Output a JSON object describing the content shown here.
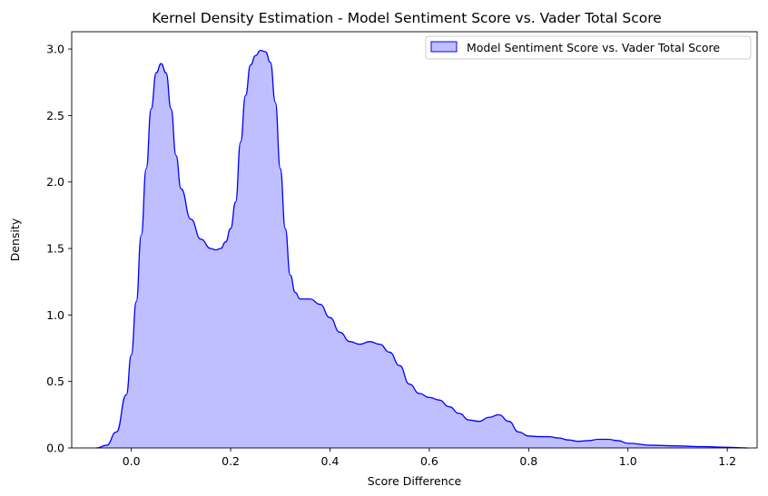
{
  "chart_data": {
    "type": "area",
    "title": "Kernel Density Estimation - Model Sentiment Score vs. Vader Total Score",
    "xlabel": "Score Difference",
    "ylabel": "Density",
    "xlim": [
      -0.12,
      1.26
    ],
    "ylim": [
      0,
      3.13
    ],
    "xticks": [
      0.0,
      0.2,
      0.4,
      0.6,
      0.8,
      1.0,
      1.2
    ],
    "xtick_labels": [
      "0.0",
      "0.2",
      "0.4",
      "0.6",
      "0.8",
      "1.0",
      "1.2"
    ],
    "yticks": [
      0.0,
      0.5,
      1.0,
      1.5,
      2.0,
      2.5,
      3.0
    ],
    "ytick_labels": [
      "0.0",
      "0.5",
      "1.0",
      "1.5",
      "2.0",
      "2.5",
      "3.0"
    ],
    "grid": false,
    "legend_position": "top-right",
    "series": [
      {
        "name": "Model Sentiment Score vs. Vader Total Score",
        "color": "#0000ff",
        "fill_color": "#0000ff",
        "fill_opacity": 0.25,
        "x": [
          -0.07,
          -0.05,
          -0.03,
          -0.01,
          0.0,
          0.01,
          0.02,
          0.03,
          0.04,
          0.05,
          0.06,
          0.07,
          0.08,
          0.09,
          0.1,
          0.12,
          0.14,
          0.16,
          0.17,
          0.18,
          0.19,
          0.2,
          0.21,
          0.22,
          0.23,
          0.24,
          0.25,
          0.26,
          0.27,
          0.28,
          0.29,
          0.3,
          0.31,
          0.32,
          0.33,
          0.34,
          0.35,
          0.36,
          0.38,
          0.4,
          0.42,
          0.44,
          0.46,
          0.48,
          0.5,
          0.52,
          0.54,
          0.56,
          0.58,
          0.6,
          0.62,
          0.64,
          0.66,
          0.68,
          0.7,
          0.72,
          0.74,
          0.76,
          0.78,
          0.8,
          0.82,
          0.84,
          0.86,
          0.88,
          0.9,
          0.92,
          0.94,
          0.96,
          0.98,
          1.0,
          1.05,
          1.1,
          1.15,
          1.2,
          1.24
        ],
        "y": [
          0.0,
          0.02,
          0.12,
          0.4,
          0.7,
          1.1,
          1.6,
          2.1,
          2.55,
          2.82,
          2.89,
          2.82,
          2.55,
          2.2,
          1.95,
          1.72,
          1.57,
          1.5,
          1.49,
          1.5,
          1.55,
          1.65,
          1.85,
          2.3,
          2.65,
          2.88,
          2.95,
          2.99,
          2.98,
          2.9,
          2.6,
          2.1,
          1.65,
          1.3,
          1.17,
          1.12,
          1.12,
          1.12,
          1.08,
          0.98,
          0.87,
          0.8,
          0.78,
          0.8,
          0.78,
          0.72,
          0.62,
          0.48,
          0.41,
          0.38,
          0.36,
          0.31,
          0.26,
          0.21,
          0.2,
          0.23,
          0.25,
          0.2,
          0.12,
          0.09,
          0.085,
          0.085,
          0.075,
          0.06,
          0.05,
          0.055,
          0.065,
          0.065,
          0.055,
          0.035,
          0.02,
          0.015,
          0.01,
          0.005,
          0.0
        ]
      }
    ]
  }
}
